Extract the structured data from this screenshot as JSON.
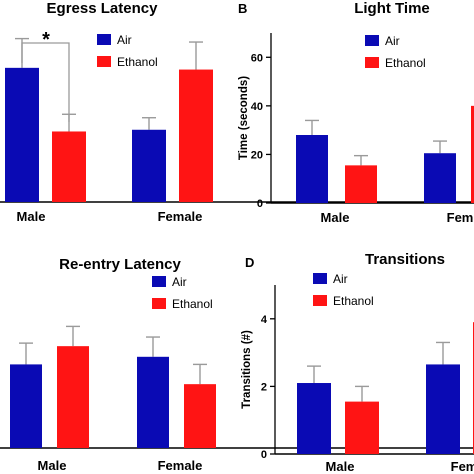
{
  "colors": {
    "air": "#0a0ab4",
    "ethanol": "#ff1414",
    "axis": "#000000",
    "error": "#9a9a9a"
  },
  "chart_data": [
    {
      "type": "bar",
      "title": "Egress Latency",
      "panel_letter": "",
      "categories": [
        "Male",
        "Female"
      ],
      "series": [
        {
          "name": "Air",
          "values": [
            0.78,
            0.42
          ],
          "errors": [
            0.17,
            0.07
          ]
        },
        {
          "name": "Ethanol",
          "values": [
            0.41,
            0.77
          ],
          "errors": [
            0.1,
            0.16
          ]
        }
      ],
      "ylim": [
        0,
        1
      ],
      "yticks": [],
      "ylabel": "",
      "show_y_axis": false,
      "significance": {
        "label": "*",
        "between": "Male Air vs Male Ethanol"
      },
      "legend": {
        "placement": "top-right"
      }
    },
    {
      "type": "bar",
      "title": "Light Time",
      "panel_letter": "B",
      "categories": [
        "Male",
        "Fem"
      ],
      "series": [
        {
          "name": "Air",
          "values": [
            28,
            20.5
          ],
          "errors": [
            6,
            5
          ]
        },
        {
          "name": "Ethanol",
          "values": [
            15.5,
            40
          ],
          "errors": [
            4,
            0
          ]
        }
      ],
      "ylim": [
        0,
        70
      ],
      "yticks": [
        "0",
        "20",
        "40",
        "60"
      ],
      "ylabel": "Time (seconds)",
      "show_y_axis": true,
      "legend": {
        "placement": "top-right"
      }
    },
    {
      "type": "bar",
      "title": "Re-entry Latency",
      "panel_letter": "",
      "categories": [
        "Male",
        "Female"
      ],
      "series": [
        {
          "name": "Air",
          "values": [
            0.55,
            0.6
          ],
          "errors": [
            0.14,
            0.13
          ]
        },
        {
          "name": "Ethanol",
          "values": [
            0.67,
            0.42
          ],
          "errors": [
            0.13,
            0.13
          ]
        }
      ],
      "ylim": [
        0,
        1
      ],
      "yticks": [],
      "ylabel": "",
      "show_y_axis": false,
      "legend": {
        "placement": "top-right"
      }
    },
    {
      "type": "bar",
      "title": "Transitions",
      "panel_letter": "D",
      "categories": [
        "Male",
        "Fem"
      ],
      "series": [
        {
          "name": "Air",
          "values": [
            2.1,
            2.65
          ],
          "errors": [
            0.5,
            0.65
          ]
        },
        {
          "name": "Ethanol",
          "values": [
            1.55,
            3.9
          ],
          "errors": [
            0.45,
            0
          ]
        }
      ],
      "ylim": [
        0,
        5
      ],
      "yticks": [
        "0",
        "2",
        "4"
      ],
      "ylabel": "Transitions (#)",
      "show_y_axis": true,
      "legend": {
        "placement": "top-left"
      }
    }
  ]
}
